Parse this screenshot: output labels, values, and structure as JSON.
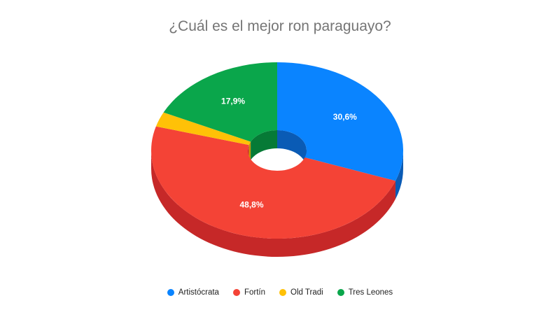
{
  "chart_data": {
    "type": "pie",
    "title": "¿Cuál es el mejor ron paraguayo?",
    "donut": true,
    "three_d": true,
    "series": [
      {
        "name": "Artistócrata",
        "value": 30.6,
        "label": "30,6%",
        "color": "#0a84ff",
        "side_color": "#0a5bb5"
      },
      {
        "name": "Fortín",
        "value": 48.8,
        "label": "48,8%",
        "color": "#f44336",
        "side_color": "#c62828"
      },
      {
        "name": "Old Tradi",
        "value": 2.7,
        "label": "",
        "color": "#ffc107",
        "side_color": "#c79400"
      },
      {
        "name": "Tres Leones",
        "value": 17.9,
        "label": "17,9%",
        "color": "#0aa64b",
        "side_color": "#067a36"
      }
    ],
    "legend_position": "bottom"
  }
}
